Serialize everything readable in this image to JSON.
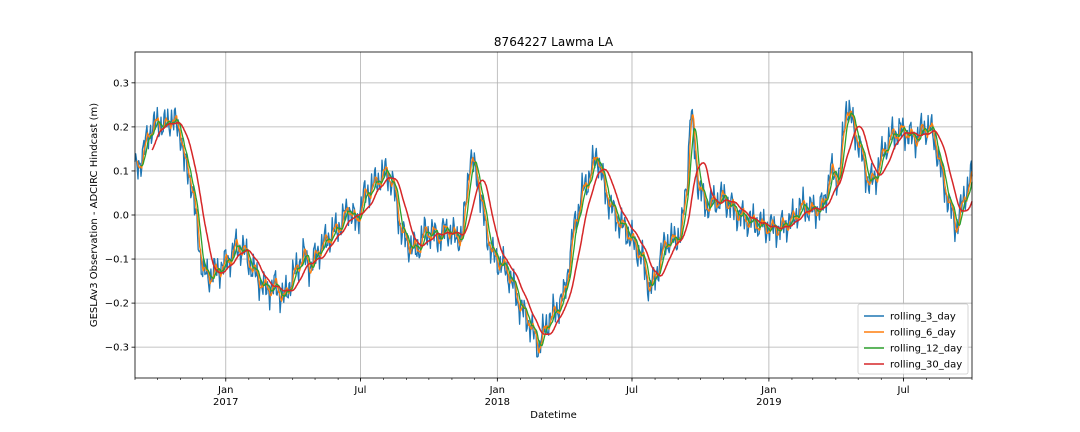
{
  "chart_data": {
    "type": "line",
    "title": "8764227 Lawma LA",
    "xlabel": "Datetime",
    "ylabel": "GESLAv3 Observation - ADCIRC Hindcast (m)",
    "xlim": [
      "2016-09-01",
      "2019-10-01"
    ],
    "ylim": [
      -0.37,
      0.37
    ],
    "grid": true,
    "legend_position": "bottom-right",
    "x_major_ticks": [
      {
        "date": "2017-01-01",
        "label": "Jan",
        "sublabel": "2017"
      },
      {
        "date": "2017-07-01",
        "label": "Jul",
        "sublabel": ""
      },
      {
        "date": "2018-01-01",
        "label": "Jan",
        "sublabel": "2018"
      },
      {
        "date": "2018-07-01",
        "label": "Jul",
        "sublabel": ""
      },
      {
        "date": "2019-01-01",
        "label": "Jan",
        "sublabel": "2019"
      },
      {
        "date": "2019-07-01",
        "label": "Jul",
        "sublabel": ""
      }
    ],
    "y_ticks": [
      -0.3,
      -0.2,
      -0.1,
      0.0,
      0.1,
      0.2,
      0.3
    ],
    "y_tick_labels": [
      "−0.3",
      "−0.2",
      "−0.1",
      "0.0",
      "0.1",
      "0.2",
      "0.3"
    ],
    "series_anchors": {
      "dates": [
        "2016-09-01",
        "2016-09-08",
        "2016-09-20",
        "2016-10-01",
        "2016-10-10",
        "2016-10-20",
        "2016-11-01",
        "2016-11-06",
        "2016-11-15",
        "2016-12-01",
        "2016-12-10",
        "2016-12-25",
        "2017-01-05",
        "2017-01-15",
        "2017-01-25",
        "2017-02-05",
        "2017-02-15",
        "2017-02-25",
        "2017-03-08",
        "2017-03-20",
        "2017-04-01",
        "2017-04-15",
        "2017-04-25",
        "2017-05-05",
        "2017-05-15",
        "2017-05-25",
        "2017-06-05",
        "2017-06-15",
        "2017-06-25",
        "2017-07-05",
        "2017-07-15",
        "2017-07-25",
        "2017-08-05",
        "2017-08-15",
        "2017-08-25",
        "2017-09-05",
        "2017-09-15",
        "2017-09-25",
        "2017-10-05",
        "2017-10-15",
        "2017-10-25",
        "2017-11-05",
        "2017-11-15",
        "2017-11-25",
        "2017-12-05",
        "2017-12-15",
        "2017-12-25",
        "2018-01-05",
        "2018-01-15",
        "2018-01-22",
        "2018-02-01",
        "2018-02-12",
        "2018-02-25",
        "2018-03-10",
        "2018-03-20",
        "2018-04-01",
        "2018-04-15",
        "2018-04-25",
        "2018-05-05",
        "2018-05-15",
        "2018-05-25",
        "2018-06-05",
        "2018-06-15",
        "2018-06-25",
        "2018-07-05",
        "2018-07-15",
        "2018-07-25",
        "2018-08-05",
        "2018-08-15",
        "2018-08-25",
        "2018-09-05",
        "2018-09-13",
        "2018-09-18",
        "2018-09-28",
        "2018-10-08",
        "2018-10-20",
        "2018-11-01",
        "2018-11-15",
        "2018-12-01",
        "2018-12-15",
        "2019-01-01",
        "2019-01-15",
        "2019-02-01",
        "2019-02-15",
        "2019-03-01",
        "2019-03-15",
        "2019-03-25",
        "2019-04-05",
        "2019-04-15",
        "2019-04-25",
        "2019-05-05",
        "2019-05-15",
        "2019-05-25",
        "2019-06-05",
        "2019-06-15",
        "2019-06-25",
        "2019-07-05",
        "2019-07-15",
        "2019-07-25",
        "2019-08-05",
        "2019-08-12",
        "2019-08-20",
        "2019-09-01",
        "2019-09-10",
        "2019-09-20",
        "2019-10-01"
      ],
      "values": [
        0.1,
        0.12,
        0.19,
        0.21,
        0.2,
        0.22,
        0.19,
        0.12,
        0.08,
        -0.13,
        -0.14,
        -0.12,
        -0.1,
        -0.07,
        -0.08,
        -0.12,
        -0.15,
        -0.17,
        -0.16,
        -0.19,
        -0.14,
        -0.09,
        -0.12,
        -0.08,
        -0.06,
        -0.04,
        -0.02,
        0.02,
        -0.02,
        0.04,
        0.06,
        0.08,
        0.1,
        0.06,
        -0.04,
        -0.07,
        -0.08,
        -0.04,
        -0.04,
        -0.05,
        -0.03,
        -0.05,
        -0.05,
        0.13,
        0.09,
        -0.02,
        -0.09,
        -0.11,
        -0.13,
        -0.16,
        -0.21,
        -0.24,
        -0.3,
        -0.24,
        -0.22,
        -0.18,
        -0.02,
        0.05,
        0.09,
        0.14,
        0.06,
        0.01,
        -0.02,
        -0.04,
        -0.07,
        -0.1,
        -0.17,
        -0.12,
        -0.06,
        -0.06,
        -0.04,
        0.08,
        0.24,
        0.07,
        0.02,
        0.03,
        0.04,
        0.01,
        -0.01,
        -0.02,
        -0.03,
        -0.03,
        -0.01,
        0.02,
        0.01,
        0.02,
        0.1,
        0.08,
        0.25,
        0.2,
        0.14,
        0.07,
        0.09,
        0.15,
        0.18,
        0.19,
        0.19,
        0.17,
        0.19,
        0.2,
        0.17,
        0.1,
        0.02,
        -0.03,
        0.04,
        0.09
      ]
    },
    "series": [
      {
        "name": "rolling_3_day",
        "color": "#1f77b4"
      },
      {
        "name": "rolling_6_day",
        "color": "#ff7f0e"
      },
      {
        "name": "rolling_12_day",
        "color": "#2ca02c"
      },
      {
        "name": "rolling_30_day",
        "color": "#d62728"
      }
    ]
  }
}
